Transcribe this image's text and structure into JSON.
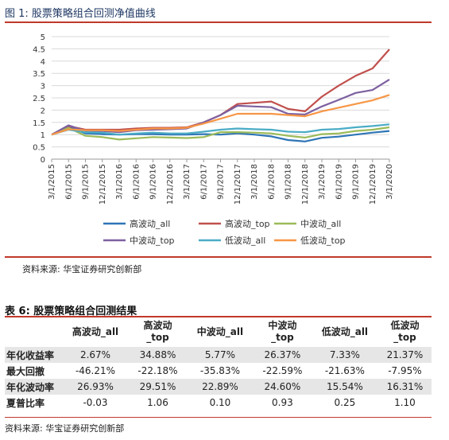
{
  "figure": {
    "title": "图 1:  股票策略组合回测净值曲线",
    "source": "资料来源:  华宝证券研究创新部"
  },
  "chart_data": {
    "type": "line",
    "title": "",
    "xlabel": "",
    "ylabel": "",
    "ylim": [
      0,
      5
    ],
    "yticks": [
      "0",
      "0.5",
      "1",
      "1.5",
      "2",
      "2.5",
      "3",
      "3.5",
      "4",
      "4.5",
      "5"
    ],
    "x": [
      "3/1/2015",
      "6/1/2015",
      "9/1/2015",
      "12/1/2015",
      "3/1/2016",
      "6/1/2016",
      "9/1/2016",
      "12/1/2016",
      "3/1/2017",
      "6/1/2017",
      "9/1/2017",
      "12/1/2017",
      "3/1/2018",
      "6/1/2018",
      "9/1/2018",
      "12/1/2018",
      "3/1/2019",
      "6/1/2019",
      "9/1/2019",
      "12/1/2019",
      "3/1/2020"
    ],
    "legend_position": "bottom",
    "series": [
      {
        "name": "高波动_all",
        "color": "#2e75b6",
        "values": [
          1.0,
          1.32,
          1.05,
          1.02,
          1.0,
          1.02,
          1.02,
          1.0,
          1.0,
          1.02,
          1.0,
          1.05,
          1.0,
          0.93,
          0.78,
          0.72,
          0.87,
          0.92,
          1.0,
          1.08,
          1.15
        ]
      },
      {
        "name": "高波动_top",
        "color": "#c0504d",
        "values": [
          1.0,
          1.35,
          1.2,
          1.2,
          1.2,
          1.25,
          1.28,
          1.28,
          1.3,
          1.5,
          1.8,
          2.25,
          2.3,
          2.35,
          2.05,
          1.95,
          2.55,
          3.0,
          3.4,
          3.7,
          4.48
        ]
      },
      {
        "name": "中波动_all",
        "color": "#9bbb59",
        "values": [
          1.0,
          1.28,
          0.95,
          0.9,
          0.8,
          0.85,
          0.9,
          0.88,
          0.86,
          0.9,
          1.1,
          1.1,
          1.08,
          1.05,
          0.95,
          0.88,
          1.02,
          1.05,
          1.15,
          1.2,
          1.3
        ]
      },
      {
        "name": "中波动_top",
        "color": "#7d60a0",
        "values": [
          1.0,
          1.38,
          1.15,
          1.15,
          1.1,
          1.18,
          1.2,
          1.22,
          1.25,
          1.5,
          1.8,
          2.18,
          2.15,
          2.12,
          1.85,
          1.82,
          2.15,
          2.42,
          2.7,
          2.82,
          3.25
        ]
      },
      {
        "name": "低波动_all",
        "color": "#4bacc6",
        "values": [
          1.0,
          1.2,
          1.1,
          1.08,
          1.0,
          1.05,
          1.08,
          1.05,
          1.05,
          1.12,
          1.2,
          1.25,
          1.22,
          1.2,
          1.12,
          1.1,
          1.2,
          1.23,
          1.3,
          1.35,
          1.42
        ]
      },
      {
        "name": "低波动_top",
        "color": "#f79646",
        "values": [
          1.0,
          1.22,
          1.18,
          1.18,
          1.15,
          1.2,
          1.25,
          1.25,
          1.28,
          1.45,
          1.65,
          1.85,
          1.85,
          1.85,
          1.8,
          1.75,
          1.95,
          2.1,
          2.25,
          2.4,
          2.62
        ]
      }
    ]
  },
  "table": {
    "title": "表 6:  股票策略组合回测结果",
    "headers": [
      "",
      "高波动_all",
      "高波动\n_top",
      "中波动_all",
      "中波动\n_top",
      "低波动_all",
      "低波动\n_top"
    ],
    "rows": [
      [
        "年化收益率",
        "2.67%",
        "34.88%",
        "5.77%",
        "26.37%",
        "7.33%",
        "21.37%"
      ],
      [
        "最大回撤",
        "-46.21%",
        "-22.18%",
        "-35.83%",
        "-22.59%",
        "-21.63%",
        "-7.95%"
      ],
      [
        "年化波动率",
        "26.93%",
        "29.51%",
        "22.89%",
        "24.60%",
        "15.54%",
        "16.31%"
      ],
      [
        "夏普比率",
        "-0.03",
        "1.06",
        "0.10",
        "0.93",
        "0.25",
        "1.10"
      ]
    ],
    "source": "资料来源:  华宝证券研究创新部"
  }
}
